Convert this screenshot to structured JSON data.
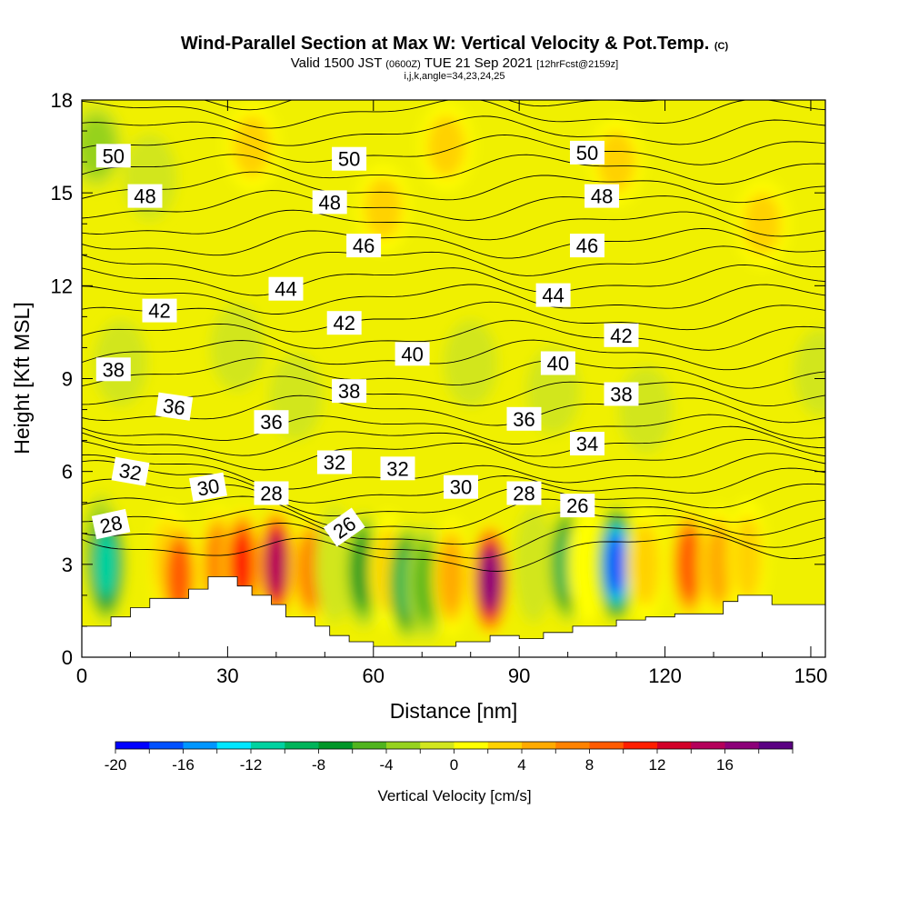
{
  "title": {
    "main": "Wind-Parallel Section at Max W: Vertical Velocity & Pot.Temp.",
    "main_suffix": "(C)",
    "valid_prefix": "Valid 1500 JST",
    "valid_utc": "(0600Z)",
    "valid_date": "TUE 21 Sep 2021",
    "forecast": "[12hrFcst@2159z]",
    "indices": "i,j,k,angle=34,23,24,25"
  },
  "chart_data": {
    "type": "heatmap",
    "xlabel": "Distance [nm]",
    "ylabel": "Height [Kft MSL]",
    "xlim": [
      0,
      153
    ],
    "ylim": [
      0,
      18
    ],
    "x_ticks": [
      0,
      30,
      60,
      90,
      120,
      150
    ],
    "y_ticks": [
      0,
      3,
      6,
      9,
      12,
      15,
      18
    ],
    "colorbar": {
      "title": "Vertical Velocity [cm/s]",
      "min": -20,
      "max": 18,
      "step": 2,
      "tick_values": [
        -20,
        -16,
        -12,
        -8,
        -4,
        0,
        4,
        8,
        12,
        16
      ],
      "colors": [
        "#0000ff",
        "#0050ff",
        "#0096ff",
        "#00e6ff",
        "#00d2a0",
        "#00b45a",
        "#009628",
        "#50b41e",
        "#96d21e",
        "#d2e61e",
        "#ffff00",
        "#ffd200",
        "#ffaa00",
        "#ff8200",
        "#ff5a00",
        "#ff1e00",
        "#d20028",
        "#b4005a",
        "#8c0078",
        "#5a0082"
      ]
    },
    "terrain_kft": {
      "x": [
        0,
        6,
        6,
        10,
        10,
        14,
        14,
        22,
        22,
        26,
        26,
        32,
        32,
        35,
        35,
        39,
        39,
        42,
        42,
        48,
        48,
        51,
        51,
        55,
        55,
        60,
        60,
        77,
        77,
        84,
        84,
        90,
        90,
        95,
        95,
        101,
        101,
        104,
        104,
        110,
        110,
        116,
        116,
        122,
        122,
        132,
        132,
        135,
        135,
        142,
        142,
        147,
        147,
        153
      ],
      "y": [
        1.0,
        1.0,
        1.3,
        1.3,
        1.6,
        1.6,
        1.9,
        1.9,
        2.2,
        2.2,
        2.6,
        2.6,
        2.3,
        2.3,
        2.0,
        2.0,
        1.7,
        1.7,
        1.3,
        1.3,
        1.0,
        1.0,
        0.7,
        0.7,
        0.5,
        0.5,
        0.35,
        0.35,
        0.5,
        0.5,
        0.7,
        0.7,
        0.6,
        0.6,
        0.8,
        0.8,
        1.0,
        1.0,
        1.0,
        1.0,
        1.2,
        1.2,
        1.3,
        1.3,
        1.4,
        1.4,
        1.8,
        1.8,
        2.0,
        2.0,
        1.7,
        1.7,
        1.7,
        1.7
      ]
    },
    "velocity_cells": [
      {
        "x": 4,
        "y": 3.4,
        "w": -9
      },
      {
        "x": 5,
        "y": 3.0,
        "w": -12
      },
      {
        "x": 18,
        "y": 3.0,
        "w": 4
      },
      {
        "x": 20,
        "y": 2.6,
        "w": 8
      },
      {
        "x": 28,
        "y": 3.0,
        "w": 6
      },
      {
        "x": 33,
        "y": 3.0,
        "w": 10
      },
      {
        "x": 40,
        "y": 3.0,
        "w": 14
      },
      {
        "x": 47,
        "y": 2.8,
        "w": 6
      },
      {
        "x": 52,
        "y": 3.0,
        "w": -3
      },
      {
        "x": 58,
        "y": 2.8,
        "w": -8
      },
      {
        "x": 63,
        "y": 2.8,
        "w": 3
      },
      {
        "x": 67,
        "y": 2.4,
        "w": -11
      },
      {
        "x": 71,
        "y": 2.4,
        "w": -6
      },
      {
        "x": 76,
        "y": 2.6,
        "w": 4
      },
      {
        "x": 84,
        "y": 2.5,
        "w": 17
      },
      {
        "x": 93,
        "y": 3.0,
        "w": -3
      },
      {
        "x": 100,
        "y": 3.0,
        "w": -11
      },
      {
        "x": 104,
        "y": 3.0,
        "w": 1
      },
      {
        "x": 110,
        "y": 3.0,
        "w": -18
      },
      {
        "x": 116,
        "y": 3.0,
        "w": 3
      },
      {
        "x": 125,
        "y": 3.0,
        "w": 8
      },
      {
        "x": 131,
        "y": 3.0,
        "w": 5
      },
      {
        "x": 137,
        "y": 3.2,
        "w": 3
      },
      {
        "x": 3,
        "y": 16.5,
        "w": -4
      },
      {
        "x": 14,
        "y": 15.5,
        "w": -2
      },
      {
        "x": 35,
        "y": 16.5,
        "w": 2
      },
      {
        "x": 75,
        "y": 16.5,
        "w": 2
      },
      {
        "x": 110,
        "y": 16.0,
        "w": 2
      },
      {
        "x": 8,
        "y": 9.5,
        "w": -3
      },
      {
        "x": 32,
        "y": 10.0,
        "w": -3
      },
      {
        "x": 44,
        "y": 8.4,
        "w": -3
      },
      {
        "x": 80,
        "y": 9.5,
        "w": -3
      },
      {
        "x": 97,
        "y": 8.6,
        "w": -3
      },
      {
        "x": 116,
        "y": 8.0,
        "w": -3
      },
      {
        "x": 152,
        "y": 9.2,
        "w": -3
      },
      {
        "x": 62,
        "y": 14.5,
        "w": 2
      },
      {
        "x": 140,
        "y": 14.0,
        "w": 2
      }
    ],
    "theta_contour_levels": [
      25,
      26,
      27,
      28,
      29,
      30,
      31,
      32,
      33,
      34,
      35,
      36,
      37,
      38,
      39,
      40,
      41,
      42,
      43,
      44,
      45,
      46,
      47,
      48,
      49,
      50,
      51,
      52
    ],
    "theta_labels": [
      {
        "text": "50",
        "x": 6.5,
        "y": 16.2,
        "angle": 0
      },
      {
        "text": "50",
        "x": 55,
        "y": 16.1,
        "angle": 0
      },
      {
        "text": "50",
        "x": 104,
        "y": 16.3,
        "angle": 0
      },
      {
        "text": "48",
        "x": 13,
        "y": 14.9,
        "angle": 0
      },
      {
        "text": "48",
        "x": 51,
        "y": 14.7,
        "angle": 0
      },
      {
        "text": "48",
        "x": 107,
        "y": 14.9,
        "angle": 0
      },
      {
        "text": "46",
        "x": 58,
        "y": 13.3,
        "angle": 0
      },
      {
        "text": "46",
        "x": 104,
        "y": 13.3,
        "angle": 0
      },
      {
        "text": "44",
        "x": 42,
        "y": 11.9,
        "angle": 0
      },
      {
        "text": "44",
        "x": 97,
        "y": 11.7,
        "angle": 0
      },
      {
        "text": "42",
        "x": 16,
        "y": 11.2,
        "angle": 0
      },
      {
        "text": "42",
        "x": 54,
        "y": 10.8,
        "angle": 0
      },
      {
        "text": "42",
        "x": 111,
        "y": 10.4,
        "angle": 0
      },
      {
        "text": "40",
        "x": 68,
        "y": 9.8,
        "angle": 0
      },
      {
        "text": "40",
        "x": 98,
        "y": 9.5,
        "angle": 0
      },
      {
        "text": "38",
        "x": 6.5,
        "y": 9.3,
        "angle": 0
      },
      {
        "text": "38",
        "x": 55,
        "y": 8.6,
        "angle": 0
      },
      {
        "text": "38",
        "x": 111,
        "y": 8.5,
        "angle": 0
      },
      {
        "text": "36",
        "x": 19,
        "y": 8.1,
        "angle": 8
      },
      {
        "text": "36",
        "x": 39,
        "y": 7.6,
        "angle": 0
      },
      {
        "text": "36",
        "x": 91,
        "y": 7.7,
        "angle": 0
      },
      {
        "text": "34",
        "x": 104,
        "y": 6.9,
        "angle": 0
      },
      {
        "text": "32",
        "x": 10,
        "y": 6.0,
        "angle": 10
      },
      {
        "text": "32",
        "x": 52,
        "y": 6.3,
        "angle": 0
      },
      {
        "text": "32",
        "x": 65,
        "y": 6.1,
        "angle": 0
      },
      {
        "text": "30",
        "x": 26,
        "y": 5.5,
        "angle": -10
      },
      {
        "text": "30",
        "x": 78,
        "y": 5.5,
        "angle": 0
      },
      {
        "text": "28",
        "x": 6,
        "y": 4.3,
        "angle": -12
      },
      {
        "text": "28",
        "x": 39,
        "y": 5.3,
        "angle": 0
      },
      {
        "text": "28",
        "x": 91,
        "y": 5.3,
        "angle": 0
      },
      {
        "text": "26",
        "x": 54,
        "y": 4.2,
        "angle": -35
      },
      {
        "text": "26",
        "x": 102,
        "y": 4.9,
        "angle": 0
      }
    ]
  }
}
